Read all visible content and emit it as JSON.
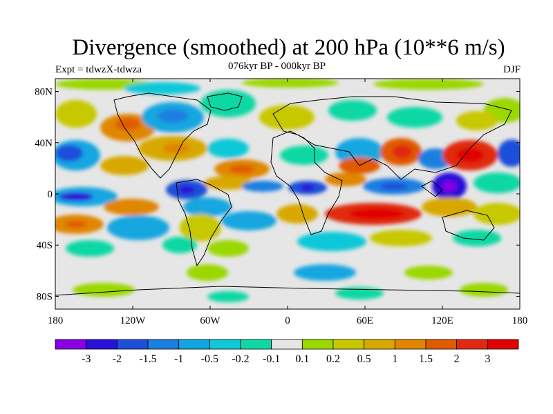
{
  "title": "Divergence (smoothed) at 200 hPa (10**6 m/s)",
  "subtitle": "076kyr BP - 000kyr BP",
  "experiment": "Expt = tdwzX-tdwza",
  "season": "DJF",
  "map": {
    "projection": "cylindrical equidistant",
    "lon_range": [
      -180,
      180
    ],
    "lat_range": [
      -90,
      90
    ],
    "background_color": "#e6e6e6",
    "coastline_color": "#000000",
    "lon_ticks": [
      "180",
      "120W",
      "60W",
      "0",
      "60E",
      "120E",
      "180"
    ],
    "lat_ticks": [
      "80N",
      "40N",
      "0",
      "40S",
      "80S"
    ]
  },
  "colorbar": {
    "labels": [
      "-3",
      "-2",
      "-1.5",
      "-1",
      "-0.5",
      "-0.2",
      "-0.1",
      "0.1",
      "0.2",
      "0.5",
      "1",
      "1.5",
      "2",
      "3"
    ],
    "colors": [
      "#8a00e6",
      "#2a10d8",
      "#1f4fd9",
      "#1a7fe0",
      "#12a6e0",
      "#10c8d8",
      "#0fd8a4",
      "#e6e6e6",
      "#9ad800",
      "#c8c800",
      "#d8a800",
      "#e08600",
      "#e05a00",
      "#e02a10",
      "#e00000"
    ]
  }
}
